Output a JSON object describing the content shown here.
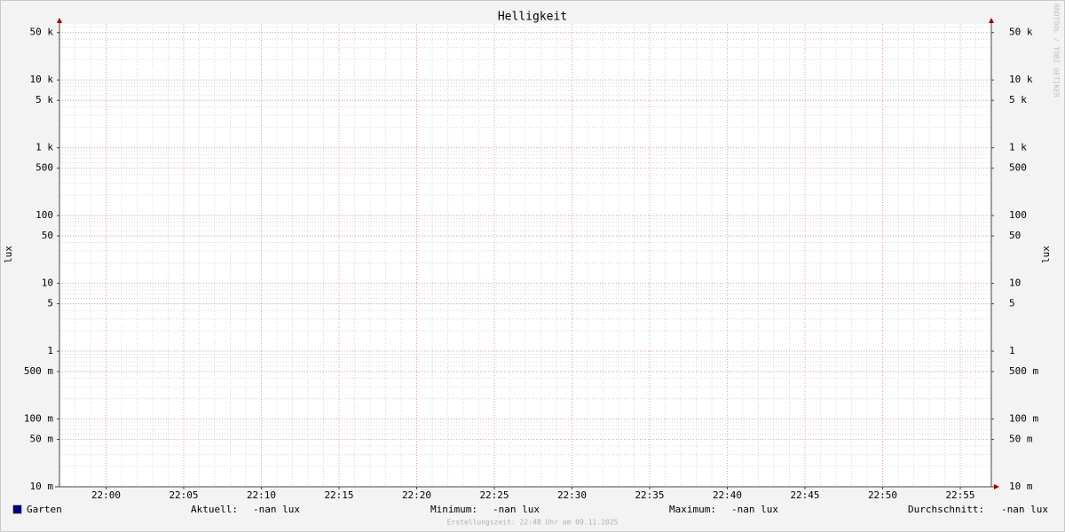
{
  "chart_data": {
    "type": "line",
    "title": "Helligkeit",
    "ylabel": "lux",
    "y2label": "lux",
    "watermark": "RRDTOOL / TOBI OETIKER",
    "footer": "Erstellungszeit: 22:48 Uhr am 09.11.2025",
    "log_scale": true,
    "grid": true,
    "x": [],
    "series": [
      {
        "name": "Garten",
        "color": "#00008b",
        "values": []
      }
    ],
    "xlim": [
      "21:57",
      "22:57"
    ],
    "xticks": [
      "22:00",
      "22:05",
      "22:10",
      "22:15",
      "22:20",
      "22:25",
      "22:30",
      "22:35",
      "22:40",
      "22:45",
      "22:50",
      "22:55"
    ],
    "ylim": [
      0.01,
      67000
    ],
    "yticks": [
      {
        "value": 0.01,
        "label": "10 m"
      },
      {
        "value": 0.05,
        "label": "50 m"
      },
      {
        "value": 0.1,
        "label": "100 m"
      },
      {
        "value": 0.5,
        "label": "500 m"
      },
      1,
      5,
      10,
      50,
      100,
      500,
      {
        "value": 1000,
        "label": "1 k"
      },
      {
        "value": 5000,
        "label": "5 k"
      },
      {
        "value": 10000,
        "label": "10 k"
      },
      {
        "value": 50000,
        "label": "50 k"
      }
    ],
    "y2lim": [
      0.01,
      67000
    ],
    "y2ticks": [
      {
        "value": 0.01,
        "label": "10 m"
      },
      {
        "value": 0.05,
        "label": "50 m"
      },
      {
        "value": 0.1,
        "label": "100 m"
      },
      {
        "value": 0.5,
        "label": "500 m"
      },
      1,
      5,
      10,
      50,
      100,
      500,
      {
        "value": 1000,
        "label": "1 k"
      },
      {
        "value": 5000,
        "label": "5 k"
      },
      {
        "value": 10000,
        "label": "10 k"
      },
      {
        "value": 50000,
        "label": "50 k"
      }
    ],
    "legend_stats": [
      {
        "label": "Aktuell:",
        "value": "-nan lux"
      },
      {
        "label": "Minimum:",
        "value": "-nan lux"
      },
      {
        "label": "Maximum:",
        "value": "-nan lux"
      },
      {
        "label": "Durchschnitt:",
        "value": "-nan lux"
      }
    ]
  }
}
